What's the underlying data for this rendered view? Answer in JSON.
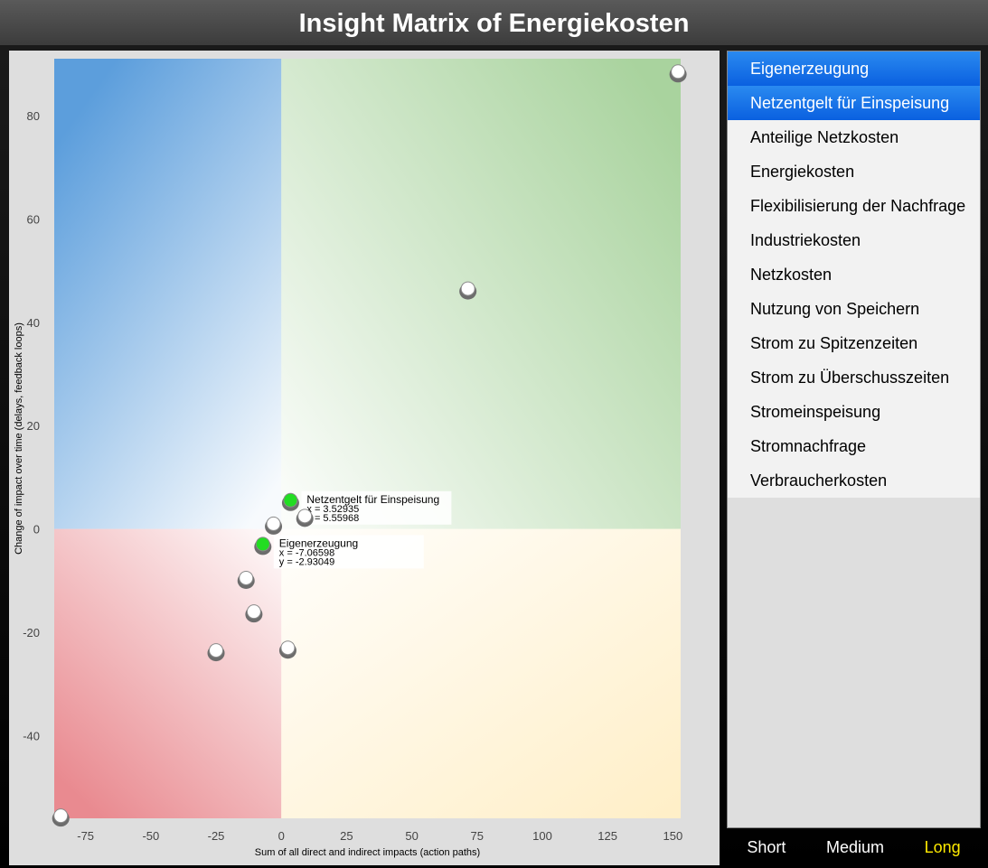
{
  "title": "Insight Matrix of Energiekosten",
  "chart_data": {
    "type": "scatter",
    "xlabel": "Sum of all direct and indirect impacts (action paths)",
    "ylabel": "Change of impact over time (delays, feedback loops)",
    "xlim": [
      -87,
      153
    ],
    "ylim": [
      -56,
      91
    ],
    "xticks": [
      -75,
      -50,
      -25,
      0,
      25,
      50,
      75,
      100,
      125,
      150
    ],
    "yticks": [
      -40,
      -20,
      0,
      20,
      40,
      60,
      80
    ],
    "quadrant_colors": {
      "top_left": "#5c9edc",
      "top_right": "#a9d39e",
      "bottom_left": "#e98a90",
      "bottom_right": "#ffefc8"
    },
    "point_color": "#ffffff",
    "highlight_color": "#22dd22",
    "points": [
      {
        "x": 152,
        "y": 88.5
      },
      {
        "x": 71.5,
        "y": 46.5
      },
      {
        "x": 3.53,
        "y": 5.56,
        "label": "Netzentgelt für Einspeisung",
        "label_x": "x = 3.52935",
        "label_y": "y = 5.55968",
        "highlighted": true
      },
      {
        "x": 9,
        "y": 2.5
      },
      {
        "x": -3,
        "y": 1
      },
      {
        "x": -7.07,
        "y": -2.93,
        "label": "Eigenerzeugung",
        "label_x": "x = -7.06598",
        "label_y": "y = -2.93049",
        "highlighted": true
      },
      {
        "x": -13.5,
        "y": -9.5
      },
      {
        "x": -10.5,
        "y": -16
      },
      {
        "x": -25,
        "y": -23.5
      },
      {
        "x": 2.5,
        "y": -23
      },
      {
        "x": -84.5,
        "y": -55.5
      }
    ]
  },
  "list": {
    "items": [
      {
        "label": "Eigenerzeugung",
        "selected": true
      },
      {
        "label": "Netzentgelt für Einspeisung",
        "selected": true
      },
      {
        "label": "Anteilige Netzkosten",
        "selected": false
      },
      {
        "label": "Energiekosten",
        "selected": false
      },
      {
        "label": "Flexibilisierung der Nachfrage",
        "selected": false
      },
      {
        "label": "Industriekosten",
        "selected": false
      },
      {
        "label": "Netzkosten",
        "selected": false
      },
      {
        "label": "Nutzung von Speichern",
        "selected": false
      },
      {
        "label": "Strom zu Spitzenzeiten",
        "selected": false
      },
      {
        "label": "Strom zu Überschusszeiten",
        "selected": false
      },
      {
        "label": "Stromeinspeisung",
        "selected": false
      },
      {
        "label": "Stromnachfrage",
        "selected": false
      },
      {
        "label": "Verbraucherkosten",
        "selected": false
      }
    ]
  },
  "horizon": {
    "short": "Short",
    "medium": "Medium",
    "long": "Long",
    "active": "long"
  }
}
